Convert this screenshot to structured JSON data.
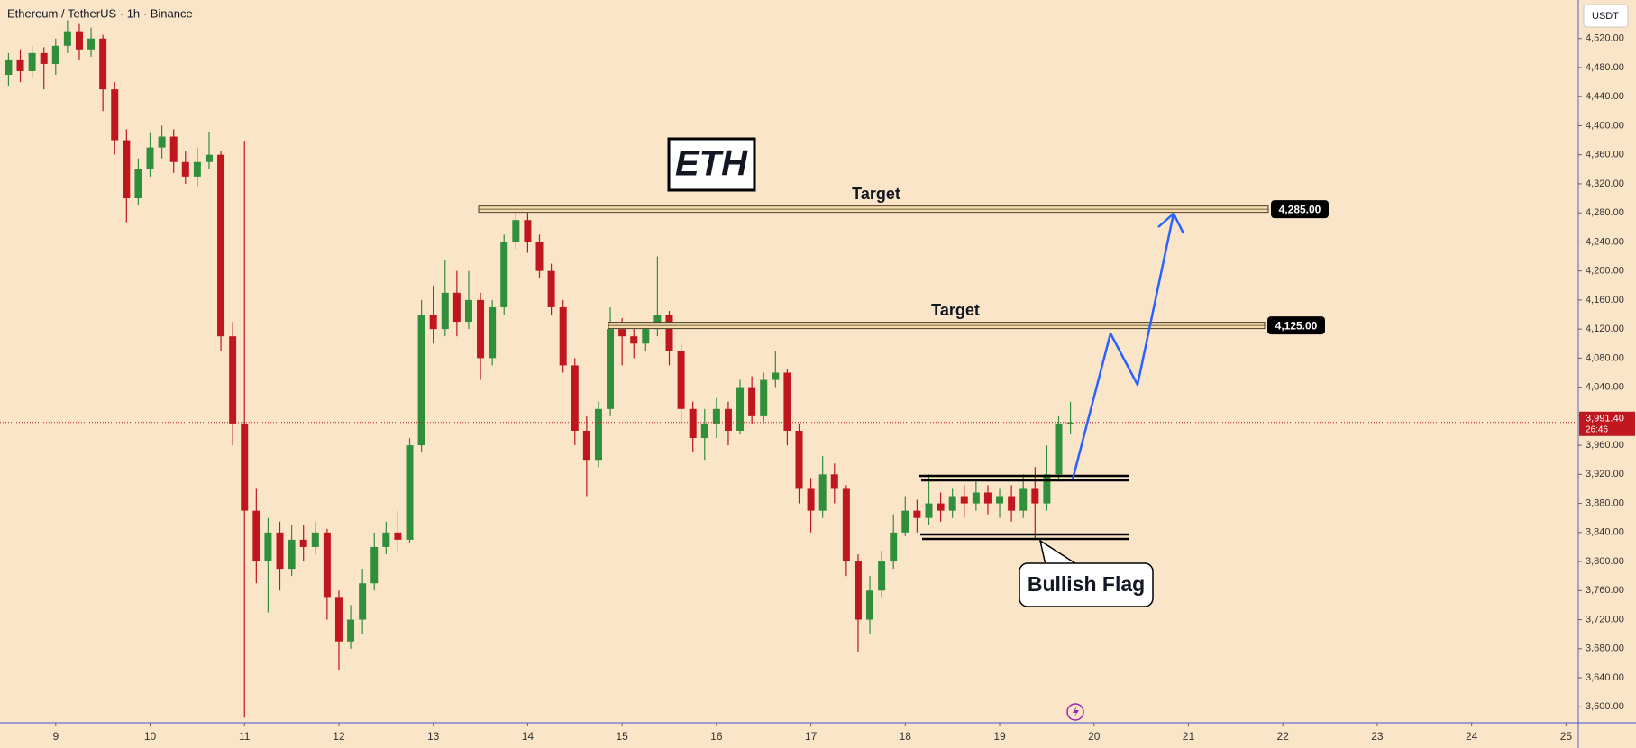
{
  "chart_data": {
    "type": "candlestick",
    "title": "Ethereum / TetherUS · 1h · Binance",
    "currency": "USDT",
    "up_color": "#2f8f3a",
    "down_color": "#c0161d",
    "x": [
      8.5,
      8.625,
      8.75,
      8.875,
      9,
      9.125,
      9.25,
      9.375,
      9.5,
      9.625,
      9.75,
      9.875,
      10,
      10.125,
      10.25,
      10.375,
      10.5,
      10.625,
      10.75,
      10.875,
      11,
      11.125,
      11.25,
      11.375,
      11.5,
      11.625,
      11.75,
      11.875,
      12,
      12.125,
      12.25,
      12.375,
      12.5,
      12.625,
      12.75,
      12.875,
      13,
      13.125,
      13.25,
      13.375,
      13.5,
      13.625,
      13.75,
      13.875,
      14,
      14.125,
      14.25,
      14.375,
      14.5,
      14.625,
      14.75,
      14.875,
      15,
      15.125,
      15.25,
      15.375,
      15.5,
      15.625,
      15.75,
      15.875,
      16,
      16.125,
      16.25,
      16.375,
      16.5,
      16.625,
      16.75,
      16.875,
      17,
      17.125,
      17.25,
      17.375,
      17.5,
      17.625,
      17.75,
      17.875,
      18,
      18.125,
      18.25,
      18.375,
      18.5,
      18.625,
      18.75,
      18.875,
      19,
      19.125,
      19.25,
      19.375,
      19.5,
      19.625,
      19.75
    ],
    "open": [
      4470,
      4490,
      4475,
      4500,
      4485,
      4510,
      4530,
      4505,
      4520,
      4450,
      4380,
      4300,
      4340,
      4370,
      4385,
      4350,
      4330,
      4350,
      4360,
      4110,
      3990,
      3870,
      3800,
      3840,
      3790,
      3830,
      3820,
      3840,
      3750,
      3690,
      3720,
      3770,
      3820,
      3840,
      3830,
      3960,
      4140,
      4120,
      4170,
      4130,
      4160,
      4080,
      4150,
      4240,
      4270,
      4240,
      4200,
      4150,
      4070,
      3980,
      3940,
      4010,
      4120,
      4110,
      4100,
      4120,
      4140,
      4090,
      4010,
      3970,
      3990,
      4010,
      3980,
      4040,
      4000,
      4050,
      4060,
      3980,
      3900,
      3870,
      3920,
      3900,
      3800,
      3720,
      3760,
      3800,
      3840,
      3870,
      3860,
      3880,
      3870,
      3890,
      3880,
      3895,
      3880,
      3890,
      3870,
      3900,
      3880,
      3920,
      3990
    ],
    "high": [
      4500,
      4505,
      4510,
      4508,
      4520,
      4545,
      4540,
      4535,
      4525,
      4460,
      4395,
      4355,
      4390,
      4400,
      4395,
      4365,
      4370,
      4392,
      4365,
      4130,
      4378,
      3900,
      3860,
      3855,
      3850,
      3850,
      3855,
      3845,
      3760,
      3740,
      3790,
      3840,
      3855,
      3870,
      3970,
      4160,
      4180,
      4215,
      4200,
      4200,
      4170,
      4160,
      4250,
      4290,
      4285,
      4250,
      4210,
      4160,
      4080,
      4000,
      4020,
      4150,
      4135,
      4130,
      4125,
      4220,
      4145,
      4100,
      4020,
      4010,
      4025,
      4020,
      4050,
      4055,
      4060,
      4090,
      4065,
      3990,
      3915,
      3945,
      3935,
      3905,
      3810,
      3780,
      3815,
      3865,
      3890,
      3885,
      3920,
      3895,
      3900,
      3905,
      3910,
      3905,
      3900,
      3905,
      3920,
      3930,
      3960,
      4000,
      4020
    ],
    "low": [
      4455,
      4460,
      4465,
      4450,
      4470,
      4500,
      4490,
      4495,
      4420,
      4360,
      4267,
      4290,
      4330,
      4355,
      4335,
      4320,
      4315,
      4340,
      4090,
      3960,
      3585,
      3770,
      3730,
      3760,
      3780,
      3800,
      3810,
      3720,
      3650,
      3680,
      3700,
      3760,
      3810,
      3815,
      3825,
      3950,
      4100,
      4110,
      4110,
      4120,
      4050,
      4070,
      4140,
      4230,
      4225,
      4190,
      4140,
      4060,
      3960,
      3890,
      3930,
      4000,
      4070,
      4080,
      4090,
      4110,
      4070,
      3990,
      3950,
      3940,
      3970,
      3960,
      3975,
      3990,
      3990,
      4040,
      3960,
      3880,
      3840,
      3860,
      3880,
      3780,
      3675,
      3700,
      3750,
      3790,
      3835,
      3840,
      3850,
      3855,
      3860,
      3860,
      3870,
      3865,
      3860,
      3855,
      3860,
      3830,
      3870,
      3910,
      3975
    ],
    "close": [
      4490,
      4475,
      4500,
      4485,
      4510,
      4530,
      4505,
      4520,
      4450,
      4380,
      4300,
      4340,
      4370,
      4385,
      4350,
      4330,
      4350,
      4360,
      4110,
      3990,
      3870,
      3800,
      3840,
      3790,
      3830,
      3820,
      3840,
      3750,
      3690,
      3720,
      3770,
      3820,
      3840,
      3830,
      3960,
      4140,
      4120,
      4170,
      4130,
      4160,
      4080,
      4150,
      4240,
      4270,
      4240,
      4200,
      4150,
      4070,
      3980,
      3940,
      4010,
      4120,
      4110,
      4100,
      4120,
      4140,
      4090,
      4010,
      3970,
      3990,
      4010,
      3980,
      4040,
      4000,
      4050,
      4060,
      3980,
      3900,
      3870,
      3920,
      3900,
      3800,
      3720,
      3760,
      3800,
      3840,
      3870,
      3860,
      3880,
      3870,
      3890,
      3880,
      3895,
      3880,
      3890,
      3870,
      3900,
      3880,
      3920,
      3990,
      3991.4
    ],
    "xlim": [
      8.41,
      25.13
    ],
    "ylim": [
      3578,
      4573
    ],
    "xticks": [
      9,
      10,
      11,
      12,
      13,
      14,
      15,
      16,
      17,
      18,
      19,
      20,
      21,
      22,
      23,
      24,
      25
    ],
    "yticks": [
      {
        "value": 3600,
        "label": "3,600.00"
      },
      {
        "value": 3640,
        "label": "3,640.00"
      },
      {
        "value": 3680,
        "label": "3,680.00"
      },
      {
        "value": 3720,
        "label": "3,720.00"
      },
      {
        "value": 3760,
        "label": "3,760.00"
      },
      {
        "value": 3800,
        "label": "3,800.00"
      },
      {
        "value": 3840,
        "label": "3,840.00"
      },
      {
        "value": 3880,
        "label": "3,880.00"
      },
      {
        "value": 3920,
        "label": "3,920.00"
      },
      {
        "value": 3960,
        "label": "3,960.00"
      },
      {
        "value": 4000,
        "label": "4,000.00"
      },
      {
        "value": 4040,
        "label": "4,040.00"
      },
      {
        "value": 4080,
        "label": "4,080.00"
      },
      {
        "value": 4120,
        "label": "4,120.00"
      },
      {
        "value": 4160,
        "label": "4,160.00"
      },
      {
        "value": 4200,
        "label": "4,200.00"
      },
      {
        "value": 4240,
        "label": "4,240.00"
      },
      {
        "value": 4280,
        "label": "4,280.00"
      },
      {
        "value": 4320,
        "label": "4,320.00"
      },
      {
        "value": 4360,
        "label": "4,360.00"
      },
      {
        "value": 4400,
        "label": "4,400.00"
      },
      {
        "value": 4440,
        "label": "4,440.00"
      },
      {
        "value": 4480,
        "label": "4,480.00"
      },
      {
        "value": 4520,
        "label": "4,520.00"
      }
    ],
    "price_line": {
      "value": 3991.4,
      "label": "3,991.40",
      "countdown": "26:46",
      "color": "#c0161d"
    },
    "levels": [
      {
        "value": 4285,
        "label": "4,285.00",
        "text": "Target"
      },
      {
        "value": 4125,
        "label": "4,125.00",
        "text": "Target"
      }
    ],
    "annotations": [
      "ETH",
      "Bullish Flag"
    ]
  }
}
